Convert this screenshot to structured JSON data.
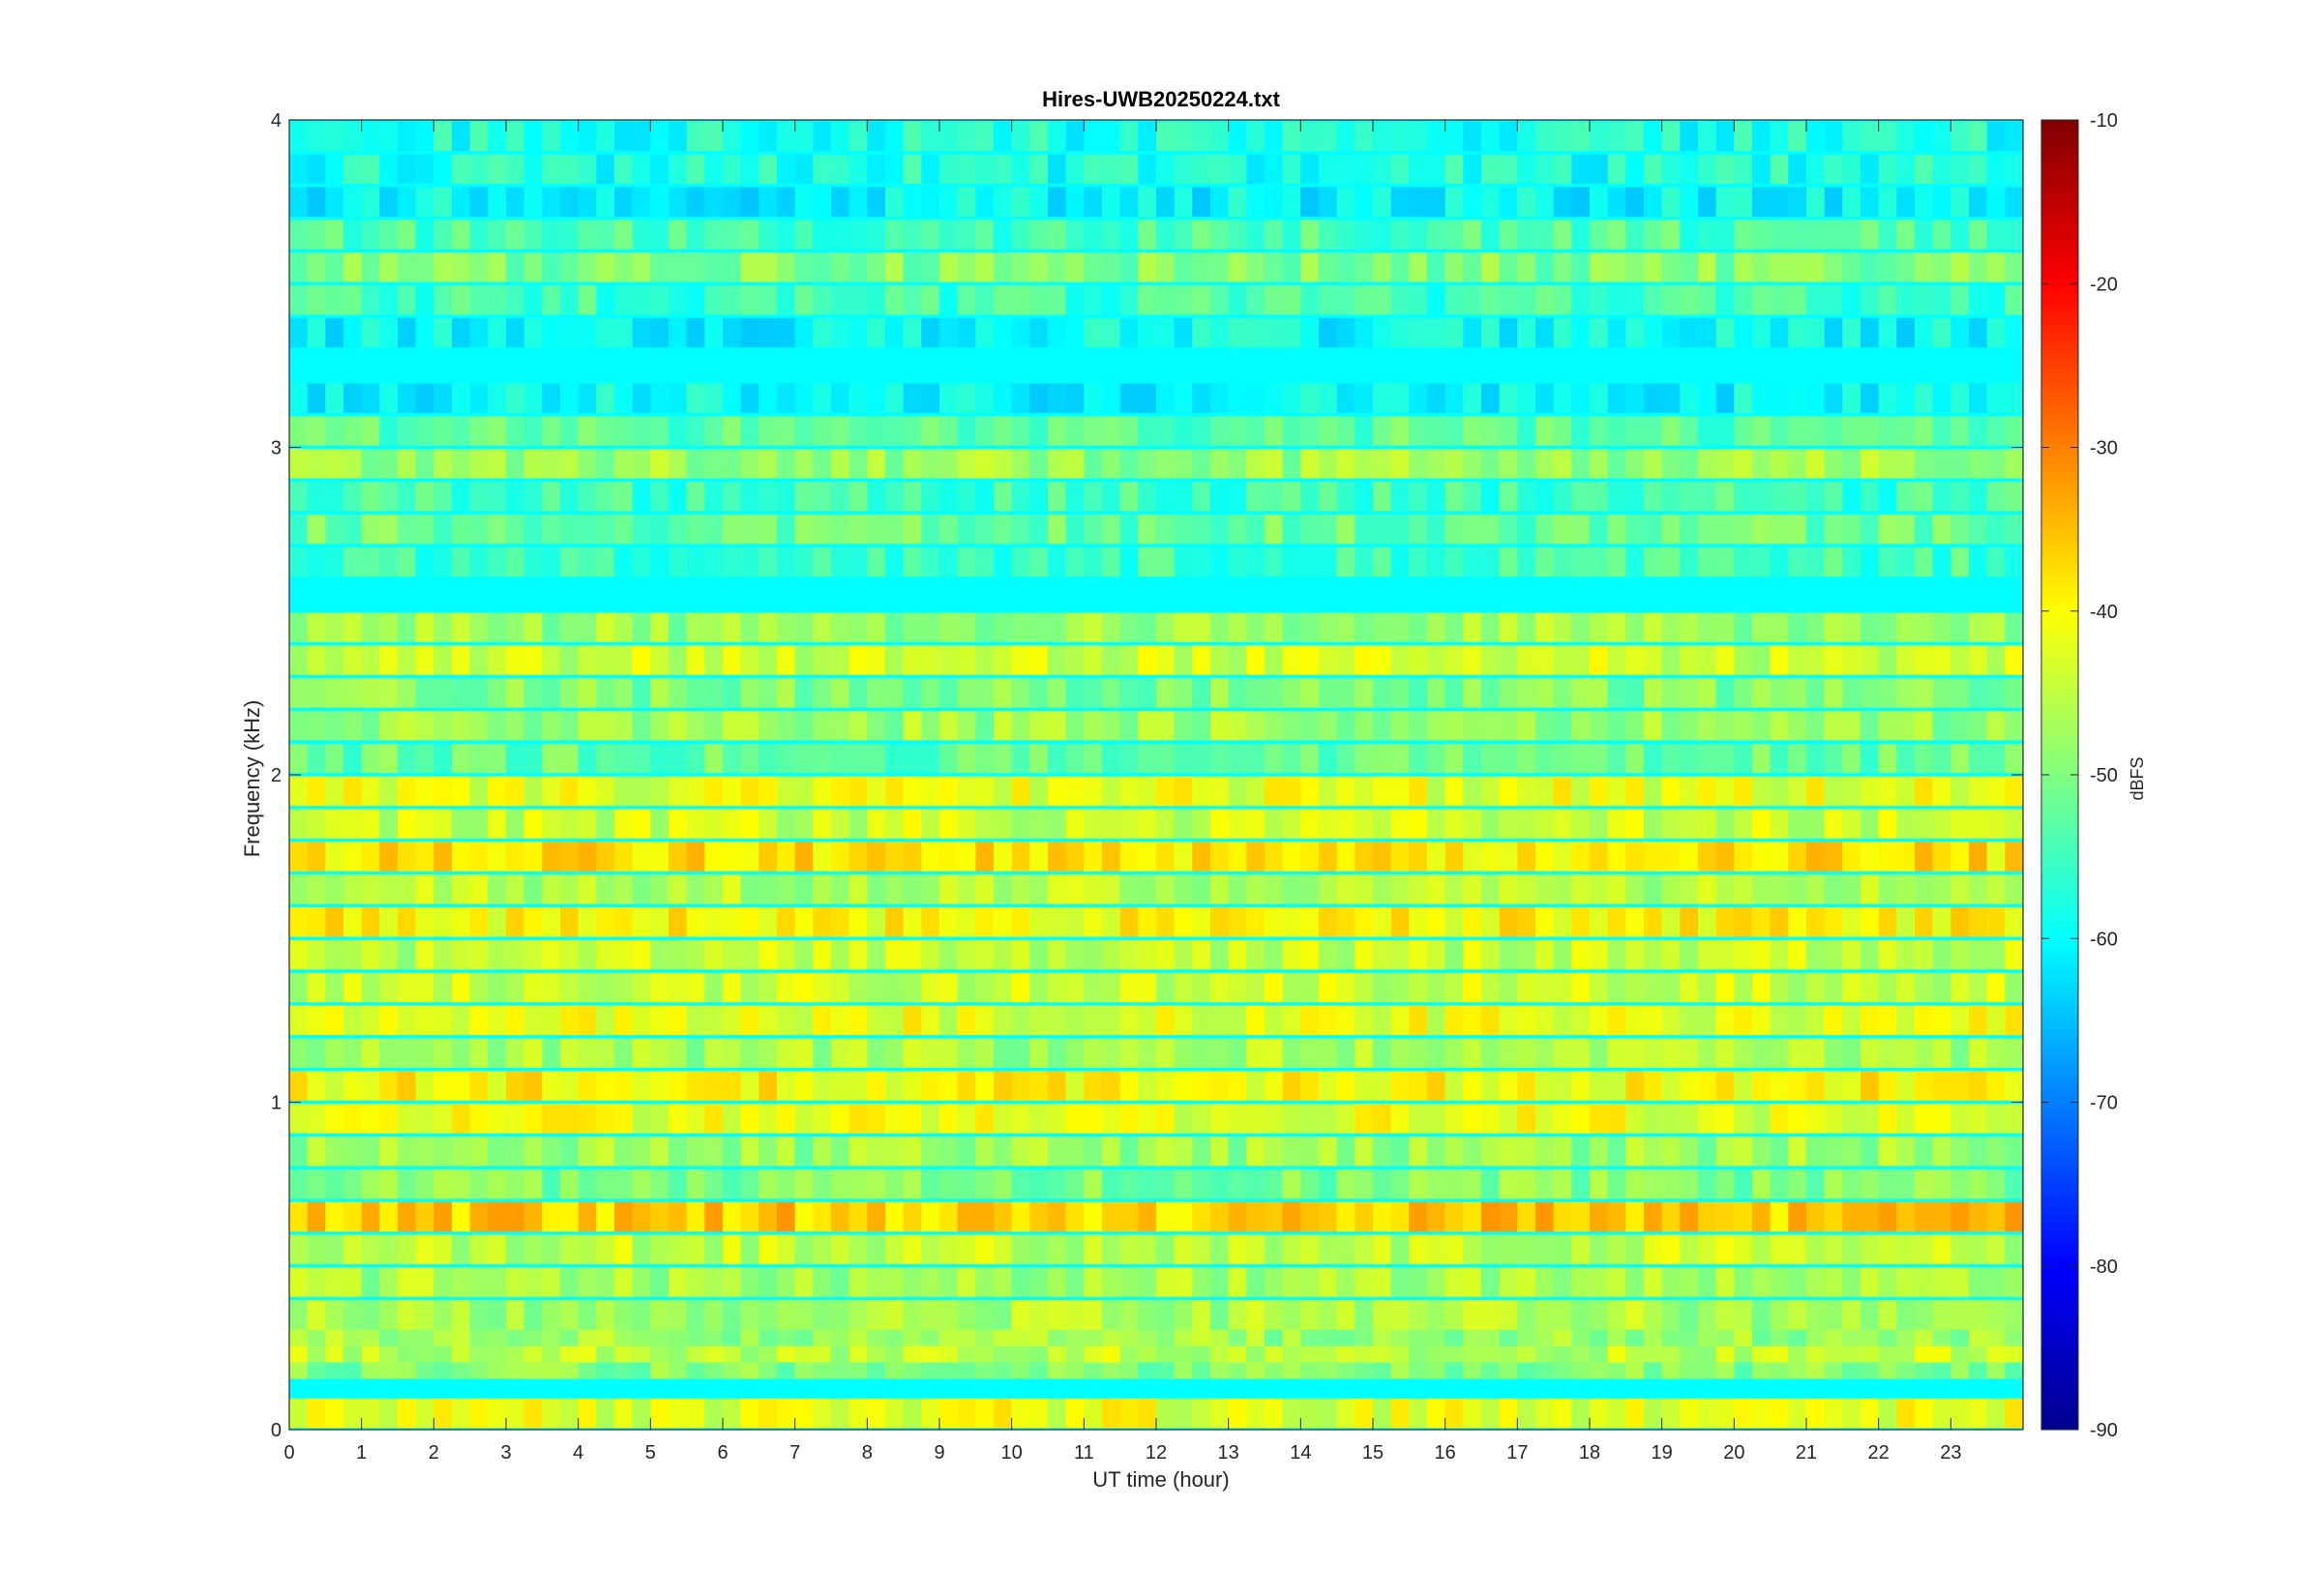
{
  "chart_data": {
    "type": "heatmap",
    "title": "Hires-UWB20250224.txt",
    "xlabel": "UT time (hour)",
    "ylabel": "Frequency (kHz)",
    "colorbar_label": "dBFS",
    "colormap": "jet",
    "xlim": [
      0,
      24
    ],
    "ylim": [
      0,
      4
    ],
    "clim": [
      -90,
      -10
    ],
    "x_ticks": [
      "0",
      "1",
      "2",
      "3",
      "4",
      "5",
      "6",
      "7",
      "8",
      "9",
      "10",
      "11",
      "12",
      "13",
      "14",
      "15",
      "16",
      "17",
      "18",
      "19",
      "20",
      "21",
      "22",
      "23"
    ],
    "y_ticks": [
      "0",
      "1",
      "2",
      "3",
      "4"
    ],
    "colorbar_ticks": [
      "-10",
      "-20",
      "-30",
      "-40",
      "-50",
      "-60",
      "-70",
      "-80",
      "-90"
    ],
    "grid": false,
    "rows_freq_khz": [
      0.05,
      0.2,
      0.25,
      0.3,
      0.35,
      0.45,
      0.55,
      0.65,
      0.75,
      0.85,
      0.95,
      1.05,
      1.15,
      1.25,
      1.35,
      1.45,
      1.55,
      1.65,
      1.75,
      1.85,
      1.95,
      2.05,
      2.15,
      2.25,
      2.35,
      2.45,
      2.65,
      2.75,
      2.85,
      2.95,
      3.05,
      3.15,
      3.35,
      3.45,
      3.55,
      3.65,
      3.75,
      3.85,
      3.95
    ],
    "rows_level_dbfs": [
      -42,
      -50,
      -45,
      -48,
      -47,
      -47,
      -45,
      -36,
      -50,
      -48,
      -42,
      -40,
      -47,
      -42,
      -44,
      -45,
      -40,
      -46,
      -38,
      -44,
      -42,
      -52,
      -48,
      -50,
      -44,
      -48,
      -55,
      -52,
      -55,
      -48,
      -53,
      -60,
      -60,
      -55,
      -50,
      -54,
      -60,
      -58,
      -58
    ],
    "background_level_dbfs": -60,
    "colormap_stops": [
      "#00008f",
      "#0000ff",
      "#00ffff",
      "#ffff00",
      "#ff0000",
      "#800000"
    ]
  }
}
